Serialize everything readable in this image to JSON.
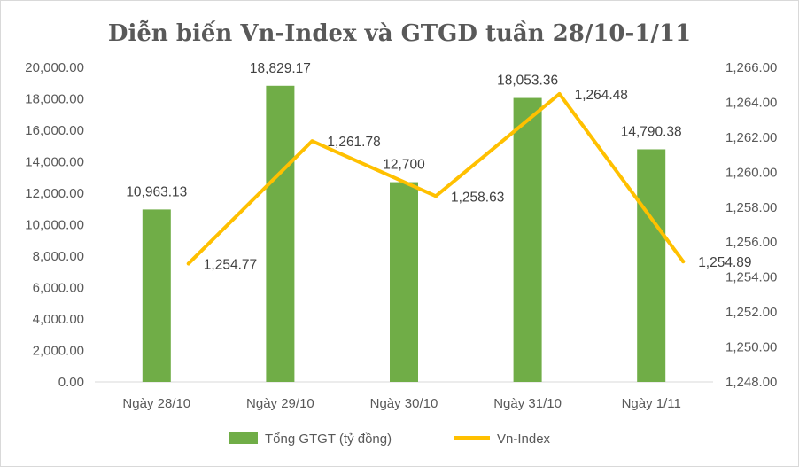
{
  "chart_data": {
    "type": "bar+line",
    "title": "Diễn biến Vn-Index và GTGD tuần 28/10-1/11",
    "categories": [
      "Ngày 28/10",
      "Ngày 29/10",
      "Ngày 30/10",
      "Ngày 31/10",
      "Ngày 1/11"
    ],
    "series": [
      {
        "name": "Tổng GTGT (tỷ đồng)",
        "type": "bar",
        "axis": "left",
        "color": "#70ad47",
        "values": [
          10963.13,
          18829.17,
          12700,
          18053.36,
          14790.38
        ],
        "labels": [
          "10,963.13",
          "18,829.17",
          "12,700",
          "18,053.36",
          "14,790.38"
        ]
      },
      {
        "name": "Vn-Index",
        "type": "line",
        "axis": "right",
        "color": "#ffc000",
        "values": [
          1254.77,
          1261.78,
          1258.63,
          1264.48,
          1254.89
        ],
        "labels": [
          "1,254.77",
          "1,261.78",
          "1,258.63",
          "1,264.48",
          "1,254.89"
        ]
      }
    ],
    "y_left": {
      "ylim": [
        0,
        20000
      ],
      "ticks": [
        "0.00",
        "2,000.00",
        "4,000.00",
        "6,000.00",
        "8,000.00",
        "10,000.00",
        "12,000.00",
        "14,000.00",
        "16,000.00",
        "18,000.00",
        "20,000.00"
      ]
    },
    "y_right": {
      "ylim": [
        1248,
        1266
      ],
      "ticks": [
        "1,248.00",
        "1,250.00",
        "1,252.00",
        "1,254.00",
        "1,256.00",
        "1,258.00",
        "1,260.00",
        "1,262.00",
        "1,264.00",
        "1,266.00"
      ]
    },
    "grid": false,
    "legend": "bottom"
  }
}
